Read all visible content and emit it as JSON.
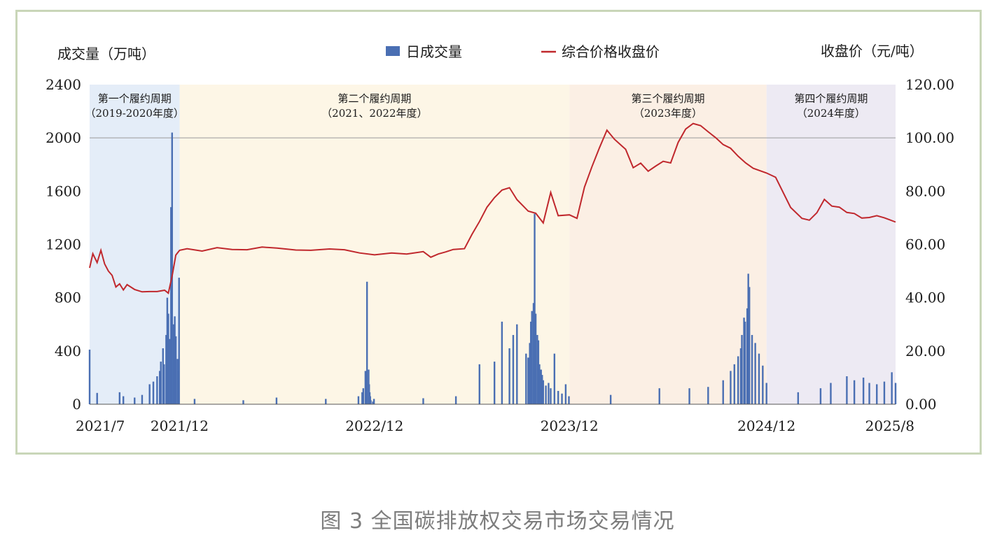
{
  "caption": "图 3 全国碳排放权交易市场交易情况",
  "chart_data": {
    "type": "bar+line",
    "left_axis_label": "成交量（万吨）",
    "right_axis_label": "收盘价（元/吨）",
    "legend": {
      "bar": "日成交量",
      "line": "综合价格收盘价"
    },
    "colors": {
      "bar": "#4a6fb3",
      "line": "#c0282d"
    },
    "ylim_left": [
      0,
      2400
    ],
    "ylim_right": [
      0,
      120
    ],
    "left_ticks": [
      "2400",
      "2000",
      "1600",
      "1200",
      "800",
      "400",
      "0"
    ],
    "right_ticks": [
      "120.00",
      "100.00",
      "80.00",
      "60.00",
      "40.00",
      "20.00",
      "0.00"
    ],
    "x_tick_labels": [
      "2021/7",
      "2021/12",
      "2022/12",
      "2023/12",
      "2024/12",
      "2025/8"
    ],
    "x_ticks_dates": [
      "2021-07-16",
      "2021-12-31",
      "2022-12-30",
      "2023-12-29",
      "2024-12-31",
      "2025-08-29"
    ],
    "x_range": [
      "2021-07-16",
      "2025-08-29"
    ],
    "periods": [
      {
        "title": "第一个履约周期",
        "subtitle": "（2019-2020年度）",
        "start": "2021-07-16",
        "end": "2021-12-31",
        "color": "#e4edf8"
      },
      {
        "title": "第二个履约周期",
        "subtitle": "（2021、2022年度）",
        "start": "2021-12-31",
        "end": "2023-12-29",
        "color": "#fdf6e6"
      },
      {
        "title": "第三个履约周期",
        "subtitle": "（2023年度）",
        "start": "2023-12-29",
        "end": "2024-12-31",
        "color": "#fbefe4"
      },
      {
        "title": "第四个履约周期",
        "subtitle": "（2024年度）",
        "start": "2024-12-31",
        "end": "2025-08-29",
        "color": "#edeaf3"
      }
    ],
    "reference_line_left": 2000,
    "price_series": {
      "name": "综合价格收盘价",
      "x": [
        "2021-07-16",
        "2021-07-22",
        "2021-07-30",
        "2021-08-06",
        "2021-08-13",
        "2021-08-20",
        "2021-08-27",
        "2021-09-03",
        "2021-09-10",
        "2021-09-17",
        "2021-09-24",
        "2021-10-08",
        "2021-10-22",
        "2021-11-05",
        "2021-11-19",
        "2021-12-03",
        "2021-12-10",
        "2021-12-17",
        "2021-12-24",
        "2021-12-31",
        "2022-01-14",
        "2022-02-11",
        "2022-03-11",
        "2022-04-08",
        "2022-05-06",
        "2022-06-03",
        "2022-07-01",
        "2022-08-05",
        "2022-09-02",
        "2022-10-07",
        "2022-11-04",
        "2022-12-02",
        "2022-12-30",
        "2023-01-31",
        "2023-02-28",
        "2023-03-31",
        "2023-04-14",
        "2023-04-28",
        "2023-05-12",
        "2023-05-26",
        "2023-06-16",
        "2023-06-30",
        "2023-07-14",
        "2023-07-28",
        "2023-08-11",
        "2023-08-25",
        "2023-09-08",
        "2023-09-22",
        "2023-10-13",
        "2023-10-27",
        "2023-11-10",
        "2023-11-24",
        "2023-12-08",
        "2023-12-29",
        "2024-01-12",
        "2024-01-26",
        "2024-02-09",
        "2024-02-23",
        "2024-03-08",
        "2024-03-22",
        "2024-04-12",
        "2024-04-26",
        "2024-05-10",
        "2024-05-24",
        "2024-06-07",
        "2024-06-21",
        "2024-07-05",
        "2024-07-19",
        "2024-08-02",
        "2024-08-16",
        "2024-08-30",
        "2024-09-13",
        "2024-09-27",
        "2024-10-11",
        "2024-10-25",
        "2024-11-08",
        "2024-11-22",
        "2024-12-06",
        "2024-12-31",
        "2025-01-17",
        "2025-02-14",
        "2025-03-07",
        "2025-03-21",
        "2025-04-04",
        "2025-04-18",
        "2025-05-02",
        "2025-05-16",
        "2025-05-30",
        "2025-06-13",
        "2025-06-27",
        "2025-07-11",
        "2025-07-25",
        "2025-08-08",
        "2025-08-29"
      ],
      "values": [
        51.2,
        56.5,
        53.2,
        57.8,
        52.7,
        50.0,
        48.4,
        44.0,
        45.2,
        42.9,
        44.9,
        43.1,
        42.2,
        42.3,
        42.3,
        42.8,
        41.7,
        48.1,
        56.0,
        57.8,
        58.4,
        57.5,
        58.8,
        58.1,
        58.0,
        59.0,
        58.6,
        57.9,
        57.8,
        58.3,
        58.0,
        56.8,
        56.1,
        56.8,
        56.4,
        57.3,
        55.2,
        56.4,
        57.2,
        58.1,
        58.4,
        63.8,
        68.6,
        74.0,
        77.6,
        80.4,
        81.3,
        76.8,
        72.5,
        71.7,
        68.1,
        79.5,
        70.8,
        71.1,
        69.8,
        81.5,
        89.2,
        96.3,
        102.9,
        99.5,
        95.7,
        88.8,
        90.5,
        87.5,
        89.4,
        91.2,
        90.6,
        98.3,
        103.3,
        105.4,
        104.6,
        102.3,
        100.1,
        97.5,
        96.1,
        93.1,
        90.6,
        88.6,
        86.8,
        85.2,
        73.9,
        69.8,
        69.1,
        71.9,
        76.9,
        74.4,
        74.0,
        72.0,
        71.6,
        69.9,
        70.1,
        70.8,
        70.0,
        68.4
      ]
    },
    "volume_series": {
      "name": "日成交量",
      "x": [
        "2021-07-16",
        "2021-07-30",
        "2021-09-10",
        "2021-09-17",
        "2021-10-08",
        "2021-10-22",
        "2021-11-05",
        "2021-11-12",
        "2021-11-19",
        "2021-11-24",
        "2021-11-26",
        "2021-11-30",
        "2021-12-02",
        "2021-12-06",
        "2021-12-08",
        "2021-12-10",
        "2021-12-13",
        "2021-12-15",
        "2021-12-16",
        "2021-12-17",
        "2021-12-20",
        "2021-12-21",
        "2021-12-22",
        "2021-12-23",
        "2021-12-24",
        "2021-12-27",
        "2021-12-28",
        "2021-12-29",
        "2021-12-30",
        "2022-01-28",
        "2022-04-29",
        "2022-06-30",
        "2022-09-30",
        "2022-11-30",
        "2022-12-07",
        "2022-12-09",
        "2022-12-13",
        "2022-12-15",
        "2022-12-16",
        "2022-12-19",
        "2022-12-20",
        "2022-12-21",
        "2022-12-22",
        "2022-12-23",
        "2022-12-27",
        "2022-12-29",
        "2023-03-31",
        "2023-05-31",
        "2023-07-14",
        "2023-08-11",
        "2023-08-25",
        "2023-09-08",
        "2023-09-15",
        "2023-09-22",
        "2023-10-09",
        "2023-10-13",
        "2023-10-16",
        "2023-10-18",
        "2023-10-20",
        "2023-10-23",
        "2023-10-25",
        "2023-10-27",
        "2023-10-30",
        "2023-11-01",
        "2023-11-03",
        "2023-11-06",
        "2023-11-08",
        "2023-11-10",
        "2023-11-15",
        "2023-11-20",
        "2023-11-24",
        "2023-12-01",
        "2023-12-08",
        "2023-12-15",
        "2023-12-22",
        "2023-12-28",
        "2024-03-15",
        "2024-06-14",
        "2024-08-09",
        "2024-09-13",
        "2024-10-11",
        "2024-10-25",
        "2024-11-01",
        "2024-11-08",
        "2024-11-13",
        "2024-11-15",
        "2024-11-19",
        "2024-11-21",
        "2024-11-25",
        "2024-11-27",
        "2024-11-29",
        "2024-12-04",
        "2024-12-10",
        "2024-12-17",
        "2024-12-24",
        "2024-12-31",
        "2025-02-28",
        "2025-04-11",
        "2025-04-30",
        "2025-05-30",
        "2025-06-13",
        "2025-06-30",
        "2025-07-11",
        "2025-07-25",
        "2025-08-08",
        "2025-08-22",
        "2025-08-29"
      ],
      "values": [
        410,
        85,
        90,
        60,
        50,
        70,
        150,
        170,
        210,
        250,
        320,
        420,
        300,
        520,
        800,
        680,
        490,
        1480,
        880,
        2040,
        600,
        520,
        660,
        420,
        510,
        340,
        250,
        200,
        950,
        40,
        30,
        50,
        40,
        60,
        90,
        120,
        250,
        180,
        920,
        260,
        150,
        90,
        60,
        30,
        20,
        40,
        45,
        60,
        300,
        320,
        620,
        420,
        520,
        600,
        380,
        350,
        460,
        620,
        700,
        760,
        1430,
        680,
        520,
        480,
        300,
        260,
        220,
        180,
        140,
        160,
        120,
        380,
        100,
        80,
        150,
        60,
        70,
        120,
        120,
        130,
        180,
        250,
        300,
        360,
        420,
        520,
        650,
        620,
        720,
        980,
        880,
        520,
        460,
        380,
        290,
        160,
        90,
        120,
        160,
        210,
        180,
        200,
        160,
        150,
        170,
        240,
        160
      ]
    }
  }
}
